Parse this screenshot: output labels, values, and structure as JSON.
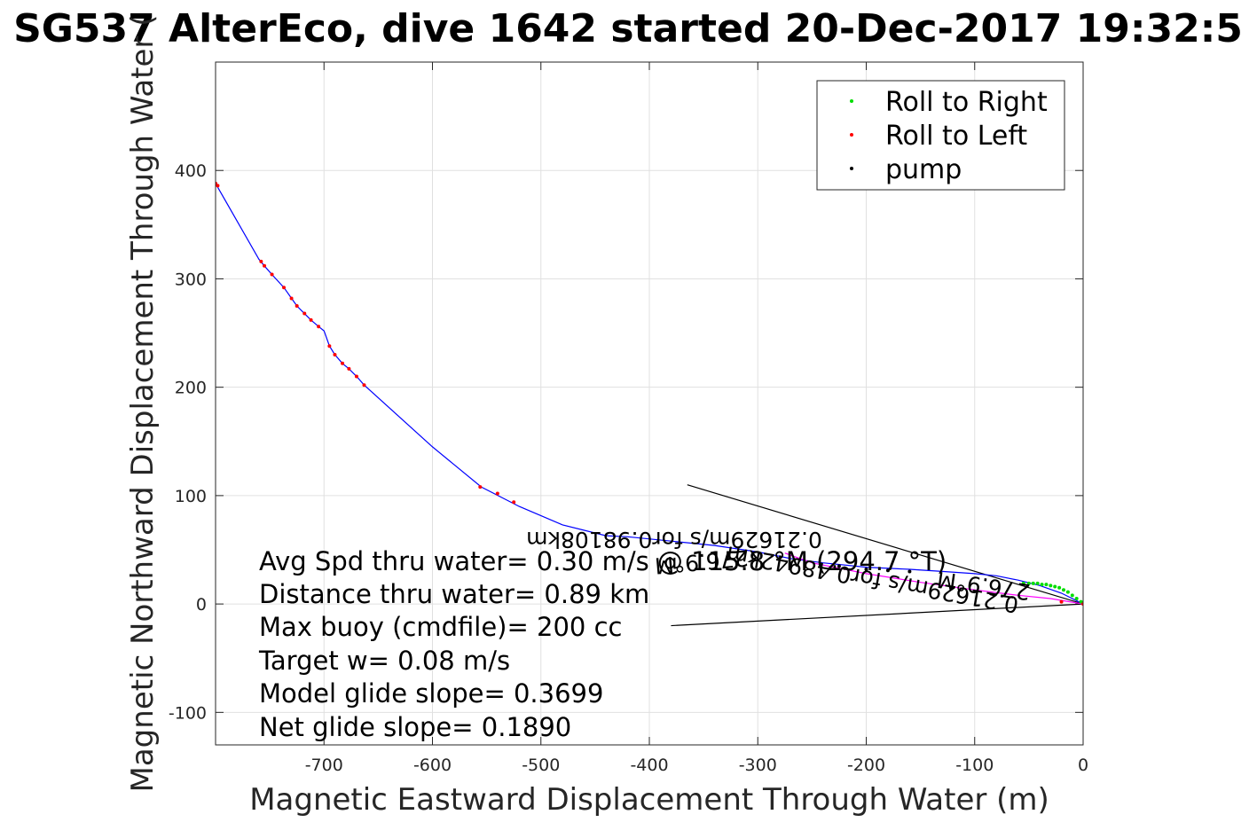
{
  "chart_data": {
    "type": "line",
    "title": "SG537 AlterEco, dive 1642 started 20-Dec-2017 19:32:5",
    "xlabel": "Magnetic Eastward Displacement Through Water (m)",
    "ylabel": "Magnetic Northward Displacement Through Water (",
    "xlim": [
      -800,
      0
    ],
    "ylim": [
      -130,
      500
    ],
    "xticks": [
      -700,
      -600,
      -500,
      -400,
      -300,
      -200,
      -100,
      0
    ],
    "xtick_labels": [
      "-700",
      "-600",
      "-500",
      "-400",
      "-300",
      "-200",
      "-100",
      "0"
    ],
    "yticks": [
      -100,
      0,
      100,
      200,
      300,
      400
    ],
    "ytick_labels": [
      "-100",
      "0",
      "100",
      "200",
      "300",
      "400"
    ],
    "grid": true,
    "legend_position": "top-right",
    "legend": [
      {
        "label": "Roll to Right",
        "color": "#00dd00"
      },
      {
        "label": "Roll to Left",
        "color": "#ff0000"
      },
      {
        "label": "pump",
        "color": "#000000"
      }
    ],
    "series": [
      {
        "name": "",
        "color": "#0000ff",
        "x": [
          0,
          -20,
          -40,
          -60,
          -80,
          -100,
          -130,
          -160,
          -200,
          -240,
          -270,
          -300,
          -340,
          -380,
          -420,
          -440,
          -480,
          -520,
          -555,
          -600,
          -663,
          -670,
          -677,
          -683,
          -690,
          -695,
          -700,
          -705,
          -712,
          -718,
          -725,
          -730,
          -737,
          -748,
          -755,
          -760,
          -800
        ],
        "y": [
          0,
          10,
          17,
          22,
          26,
          28,
          30,
          32,
          34,
          38,
          42,
          48,
          54,
          58,
          62,
          63,
          73,
          90,
          108,
          145,
          202,
          210,
          217,
          222,
          230,
          238,
          252,
          256,
          262,
          268,
          275,
          282,
          292,
          304,
          312,
          318,
          388
        ]
      },
      {
        "name": "",
        "color": "#ff00ff",
        "x": [
          0,
          -30,
          -60,
          -100,
          -150,
          -200,
          -250,
          -275
        ],
        "y": [
          0,
          5,
          8,
          13,
          20,
          28,
          38,
          47
        ]
      }
    ],
    "points": {
      "roll_right": {
        "x": [
          -2,
          -6,
          -10,
          -14,
          -18,
          -22,
          -26,
          -30,
          -34,
          -38,
          -42,
          -46,
          -50,
          -55
        ],
        "y": [
          2,
          5,
          8,
          11,
          13,
          15,
          16,
          17,
          18,
          18,
          19,
          19,
          19,
          19
        ]
      },
      "roll_left": {
        "x": [
          0,
          -20,
          -525,
          -540,
          -556,
          -663,
          -670,
          -677,
          -683,
          -690,
          -695,
          -705,
          -712,
          -718,
          -725,
          -730,
          -737,
          -748,
          -755,
          -758,
          -800,
          -798
        ],
        "y": [
          0,
          2,
          94,
          102,
          108,
          202,
          210,
          217,
          222,
          230,
          238,
          256,
          262,
          268,
          275,
          282,
          292,
          304,
          312,
          316,
          388,
          386
        ]
      },
      "pump": {
        "x": [
          -160,
          -180,
          -200,
          -220,
          -225
        ],
        "y": [
          30,
          31,
          32,
          33,
          35
        ]
      }
    },
    "current_lines": [
      {
        "x": [
          0,
          -365
        ],
        "y": [
          0,
          110
        ]
      },
      {
        "x": [
          0,
          -380
        ],
        "y": [
          0,
          -20
        ]
      }
    ],
    "annotation": [
      "Avg Spd thru water=  0.30 m/s @ 115.8 °M (294.7 °T)",
      "Distance thru water=  0.89 km",
      "Max buoy (cmdfile)= 200 cc",
      "Target w= 0.08 m/s",
      "Model glide slope= 0.3699",
      "Net glide slope= 0.1890"
    ],
    "mirrored_texts": [
      "0.21629m/s for0.98108km",
      "276.9°M",
      "0.21629m/s for0.48942km",
      "276.9°M"
    ]
  }
}
